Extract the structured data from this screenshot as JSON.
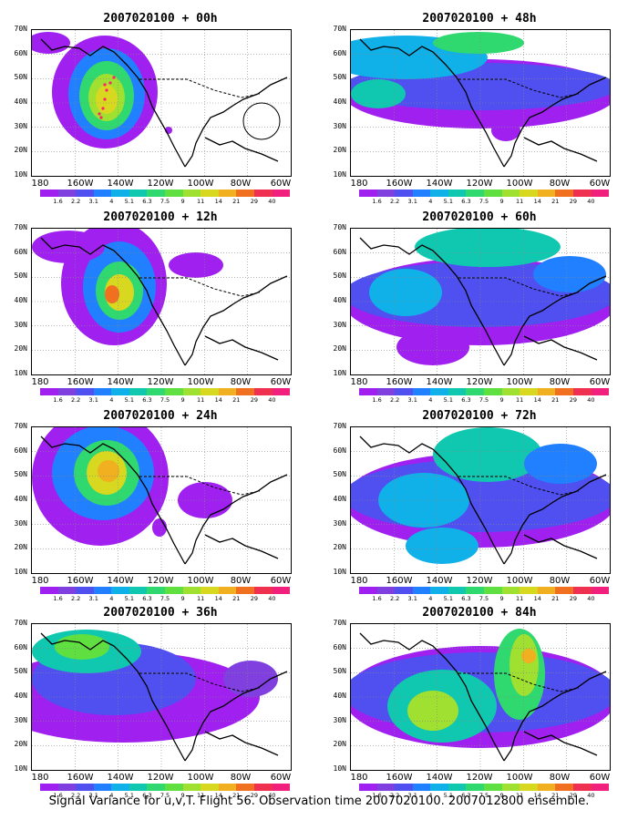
{
  "caption": "Signal Variance for u,v,T. Flight 56. Observation time 2007020100. 2007012800 ensemble.",
  "lat_labels": [
    "70N",
    "60N",
    "50N",
    "40N",
    "30N",
    "20N",
    "10N"
  ],
  "lon_labels": [
    "180",
    "160W",
    "140W",
    "120W",
    "100W",
    "80W",
    "60W"
  ],
  "colorbar": {
    "colors": [
      "#a020f0",
      "#8040e0",
      "#5050f0",
      "#2080ff",
      "#10b0e8",
      "#10c8b0",
      "#30d870",
      "#60e040",
      "#a0e030",
      "#d8d820",
      "#f0b020",
      "#f07020",
      "#f03050",
      "#f0207c"
    ],
    "labels": [
      "1.6",
      "2.2",
      "3.1",
      "4",
      "5.1",
      "6.3",
      "7.5",
      "9",
      "11",
      "14",
      "21",
      "29",
      "40"
    ]
  },
  "panels": [
    {
      "title": "2007020100 + 00h"
    },
    {
      "title": "2007020100 + 48h"
    },
    {
      "title": "2007020100 + 12h"
    },
    {
      "title": "2007020100 + 60h"
    },
    {
      "title": "2007020100 + 24h"
    },
    {
      "title": "2007020100 + 72h"
    },
    {
      "title": "2007020100 + 36h"
    },
    {
      "title": "2007020100 + 84h"
    }
  ]
}
